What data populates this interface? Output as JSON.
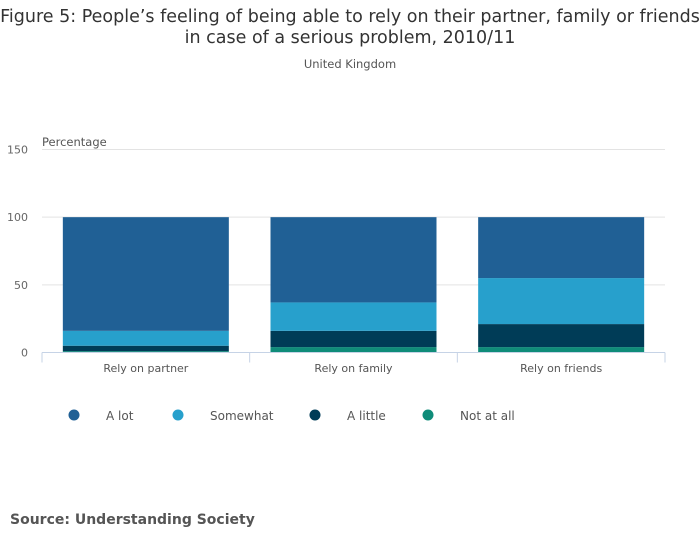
{
  "title": "Figure 5: People’s feeling of being able to rely on their partner, family or friends in case of a serious problem, 2010/11",
  "subtitle": "United Kingdom",
  "source": "Source: Understanding Society",
  "chart_data": {
    "type": "bar",
    "stacked": true,
    "ylabel": "Percentage",
    "ylim": [
      0,
      150
    ],
    "yticks": [
      0,
      50,
      100,
      150
    ],
    "grid": true,
    "legend_position": "bottom",
    "categories": [
      "Rely on partner",
      "Rely on family",
      "Rely on friends"
    ],
    "series": [
      {
        "name": "Not at all",
        "color": "#0f8c79",
        "values": [
          1,
          4,
          4
        ]
      },
      {
        "name": "A little",
        "color": "#003c57",
        "values": [
          4,
          12,
          17
        ]
      },
      {
        "name": "Somewhat",
        "color": "#27a0cc",
        "values": [
          11,
          21,
          34
        ]
      },
      {
        "name": "A lot",
        "color": "#206095",
        "values": [
          84,
          63,
          45
        ]
      }
    ],
    "legend_order": [
      "A lot",
      "Somewhat",
      "A little",
      "Not at all"
    ]
  }
}
